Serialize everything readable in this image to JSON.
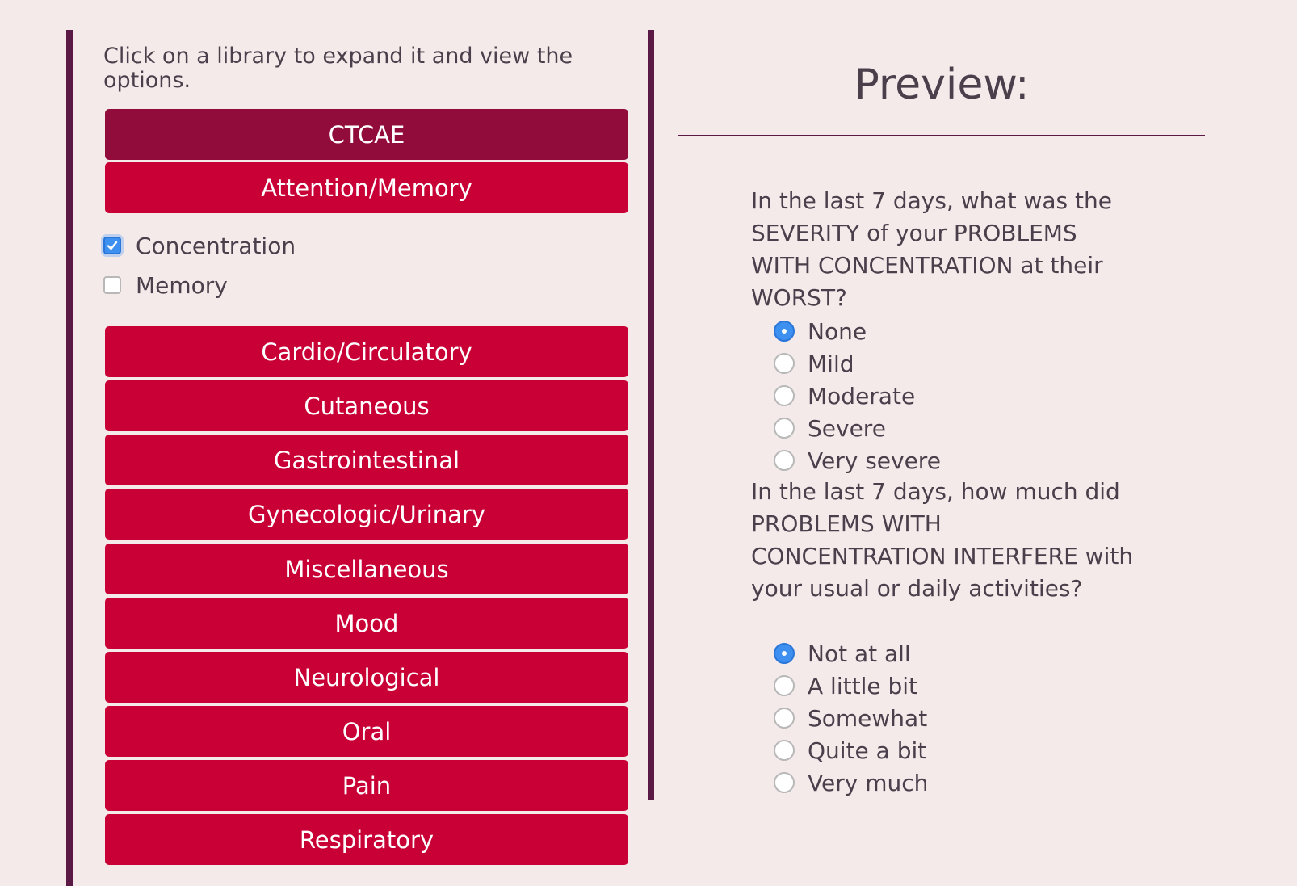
{
  "instructions": "Click on a library to expand it and view the options.",
  "libraries": [
    {
      "label": "CTCAE"
    },
    {
      "label": "Attention/Memory"
    },
    {
      "label": "Cardio/Circulatory"
    },
    {
      "label": "Cutaneous"
    },
    {
      "label": "Gastrointestinal"
    },
    {
      "label": "Gynecologic/Urinary"
    },
    {
      "label": "Miscellaneous"
    },
    {
      "label": "Mood"
    },
    {
      "label": "Neurological"
    },
    {
      "label": "Oral"
    },
    {
      "label": "Pain"
    },
    {
      "label": "Respiratory"
    }
  ],
  "expanded_options": [
    {
      "label": "Concentration",
      "checked": true
    },
    {
      "label": "Memory",
      "checked": false
    }
  ],
  "preview": {
    "title": "Preview:",
    "questions": [
      {
        "text": "In the last 7 days, what was the SEVERITY of your PROBLEMS WITH CONCENTRATION at their WORST?",
        "options": [
          "None",
          "Mild",
          "Moderate",
          "Severe",
          "Very severe"
        ],
        "selected": "None"
      },
      {
        "text": "In the last 7 days, how much did PROBLEMS WITH CONCENTRATION INTERFERE with your usual or daily activities?",
        "options": [
          "Not at all",
          "A little bit",
          "Somewhat",
          "Quite a bit",
          "Very much"
        ],
        "selected": "Not at all"
      }
    ]
  },
  "colors": {
    "background": "#f5eaea",
    "accent_dark": "#5a1a45",
    "button": "#c80036",
    "button_active": "#910c3a",
    "check_blue": "#3d8ff0"
  }
}
